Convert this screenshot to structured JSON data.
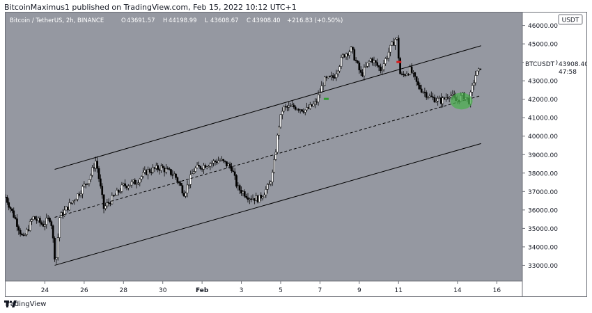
{
  "header": {
    "published_line": "BitcoinMaximus1 published on TradingView.com, Feb 15, 2022 10:12 UTC+1"
  },
  "footer": {
    "brand": "TradingView"
  },
  "colors": {
    "plot_bg": "#9598a1",
    "axis_bg": "#ffffff",
    "candle": "#000000",
    "channel": "#000000",
    "buy_marker": "#2e9e2e",
    "sell_marker": "#d81b1b",
    "highlight": "#4caf50"
  },
  "chart_data": {
    "type": "candlestick",
    "title": "Bitcoin / TetherUS, 2h, BINANCE",
    "ohlc_header": {
      "o_label": "O",
      "o": "43691.57",
      "h_label": "H",
      "h": "44198.99",
      "l_label": "L",
      "l": "43608.67",
      "c_label": "C",
      "c": "43908.40",
      "change": "+216.83 (+0.50%)"
    },
    "currency_label": "USDT",
    "y_ticks": [
      "46000.00",
      "45000.00",
      "44000.00",
      "43000.00",
      "42000.00",
      "41000.00",
      "40000.00",
      "39000.00",
      "38000.00",
      "37000.00",
      "36000.00",
      "35000.00",
      "34000.00",
      "33000.00"
    ],
    "ylim": [
      32150,
      46700
    ],
    "x_ticks": [
      {
        "label": "24",
        "day": 24
      },
      {
        "label": "26",
        "day": 26
      },
      {
        "label": "28",
        "day": 28
      },
      {
        "label": "30",
        "day": 30
      },
      {
        "label": "Feb",
        "day": 32
      },
      {
        "label": "3",
        "day": 34
      },
      {
        "label": "5",
        "day": 36
      },
      {
        "label": "7",
        "day": 38
      },
      {
        "label": "9",
        "day": 40
      },
      {
        "label": "11",
        "day": 42
      },
      {
        "label": "14",
        "day": 45
      },
      {
        "label": "16",
        "day": 47
      }
    ],
    "xlim_days": [
      22.0,
      48.3
    ],
    "price_path": [
      {
        "day": 22.0,
        "price": 36700
      },
      {
        "day": 22.5,
        "price": 35500
      },
      {
        "day": 22.9,
        "price": 34400
      },
      {
        "day": 23.4,
        "price": 35600
      },
      {
        "day": 23.9,
        "price": 35200
      },
      {
        "day": 24.3,
        "price": 35600
      },
      {
        "day": 24.55,
        "price": 33000
      },
      {
        "day": 24.75,
        "price": 35600
      },
      {
        "day": 25.2,
        "price": 36200
      },
      {
        "day": 25.8,
        "price": 37000
      },
      {
        "day": 26.3,
        "price": 37800
      },
      {
        "day": 26.6,
        "price": 38700
      },
      {
        "day": 27.0,
        "price": 36100
      },
      {
        "day": 27.5,
        "price": 36700
      },
      {
        "day": 28.0,
        "price": 37300
      },
      {
        "day": 28.6,
        "price": 37500
      },
      {
        "day": 29.2,
        "price": 38100
      },
      {
        "day": 29.9,
        "price": 38300
      },
      {
        "day": 30.6,
        "price": 37900
      },
      {
        "day": 31.1,
        "price": 36900
      },
      {
        "day": 31.6,
        "price": 38200
      },
      {
        "day": 32.3,
        "price": 38500
      },
      {
        "day": 32.9,
        "price": 38700
      },
      {
        "day": 33.5,
        "price": 38300
      },
      {
        "day": 33.8,
        "price": 37200
      },
      {
        "day": 34.4,
        "price": 36700
      },
      {
        "day": 34.9,
        "price": 36600
      },
      {
        "day": 35.4,
        "price": 37300
      },
      {
        "day": 35.6,
        "price": 38000
      },
      {
        "day": 35.9,
        "price": 40500
      },
      {
        "day": 36.1,
        "price": 41500
      },
      {
        "day": 36.7,
        "price": 41600
      },
      {
        "day": 37.3,
        "price": 41400
      },
      {
        "day": 37.8,
        "price": 41800
      },
      {
        "day": 38.2,
        "price": 43000
      },
      {
        "day": 38.7,
        "price": 43200
      },
      {
        "day": 39.2,
        "price": 44400
      },
      {
        "day": 39.6,
        "price": 44700
      },
      {
        "day": 40.1,
        "price": 43300
      },
      {
        "day": 40.6,
        "price": 44200
      },
      {
        "day": 41.1,
        "price": 43600
      },
      {
        "day": 41.6,
        "price": 44800
      },
      {
        "day": 41.9,
        "price": 45400
      },
      {
        "day": 42.1,
        "price": 43200
      },
      {
        "day": 42.6,
        "price": 43600
      },
      {
        "day": 43.0,
        "price": 42700
      },
      {
        "day": 43.6,
        "price": 42100
      },
      {
        "day": 44.2,
        "price": 41900
      },
      {
        "day": 44.6,
        "price": 42300
      },
      {
        "day": 44.9,
        "price": 41900
      },
      {
        "day": 45.3,
        "price": 42200
      },
      {
        "day": 45.6,
        "price": 41900
      },
      {
        "day": 45.9,
        "price": 43300
      },
      {
        "day": 46.1,
        "price": 43500
      },
      {
        "day": 46.2,
        "price": 43908.4
      }
    ],
    "channel": {
      "upper": {
        "start_day": 24.5,
        "start_price": 38200,
        "end_day": 46.2,
        "end_price": 44900
      },
      "middle": {
        "start_day": 24.5,
        "start_price": 35600,
        "end_day": 46.2,
        "end_price": 42200
      },
      "lower": {
        "start_day": 24.5,
        "start_price": 33000,
        "end_day": 46.2,
        "end_price": 39600
      }
    },
    "markers": [
      {
        "type": "buy",
        "day": 38.3,
        "price": 42000
      },
      {
        "type": "sell",
        "day": 42.0,
        "price": 44000
      }
    ],
    "highlight_zone": {
      "day": 45.2,
      "price": 41900
    },
    "last_price": {
      "symbol": "BTCUSDT",
      "value": "43908.40",
      "countdown": "47:58"
    }
  }
}
